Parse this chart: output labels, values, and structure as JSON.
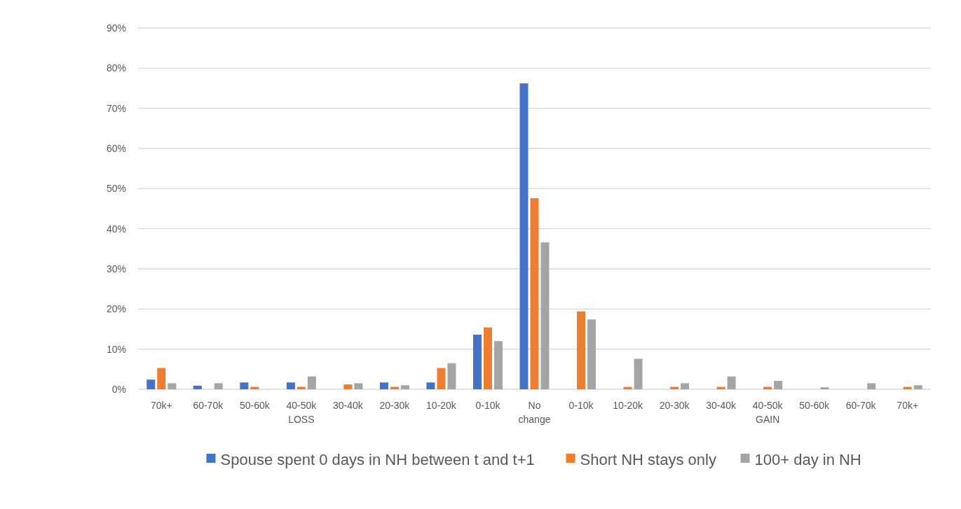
{
  "chart_data": {
    "type": "bar",
    "categories": [
      "70k+",
      "60-70k",
      "50-60k",
      "40-50k\nLOSS",
      "30-40k",
      "20-30k",
      "10-20k",
      "0-10k",
      "No\nchange",
      "0-10k",
      "10-20k",
      "20-30k",
      "30-40k",
      "40-50k\nGAIN",
      "50-60k",
      "60-70k",
      "70k+"
    ],
    "series": [
      {
        "name": "Spouse spent 0 days in NH between t and t+1",
        "color": "#4472c4",
        "values": [
          0.024,
          0.009,
          0.017,
          0.017,
          0,
          0.017,
          0.017,
          0.136,
          0.762,
          0,
          0,
          0,
          0,
          0,
          0,
          0,
          0
        ]
      },
      {
        "name": "Short NH stays only",
        "color": "#ed7d31",
        "values": [
          0.053,
          0,
          0.006,
          0.006,
          0.012,
          0.006,
          0.053,
          0.154,
          0.476,
          0.194,
          0.006,
          0.006,
          0.006,
          0.006,
          0,
          0,
          0.006
        ]
      },
      {
        "name": "100+ day in NH",
        "color": "#a5a5a5",
        "values": [
          0.015,
          0.015,
          0,
          0.032,
          0.015,
          0.01,
          0.065,
          0.12,
          0.366,
          0.174,
          0.076,
          0.015,
          0.032,
          0.021,
          0.005,
          0.015,
          0.01
        ]
      }
    ],
    "ylim": [
      0,
      0.9
    ],
    "yticks": [
      {
        "value": 0,
        "label": "0%"
      },
      {
        "value": 0.1,
        "label": "10%"
      },
      {
        "value": 0.2,
        "label": "20%"
      },
      {
        "value": 0.3,
        "label": "30%"
      },
      {
        "value": 0.4,
        "label": "40%"
      },
      {
        "value": 0.5,
        "label": "50%"
      },
      {
        "value": 0.6,
        "label": "60%"
      },
      {
        "value": 0.7,
        "label": "70%"
      },
      {
        "value": 0.8,
        "label": "80%"
      },
      {
        "value": 0.9,
        "label": "90%"
      }
    ],
    "grid": "y",
    "legend": "bottom"
  }
}
